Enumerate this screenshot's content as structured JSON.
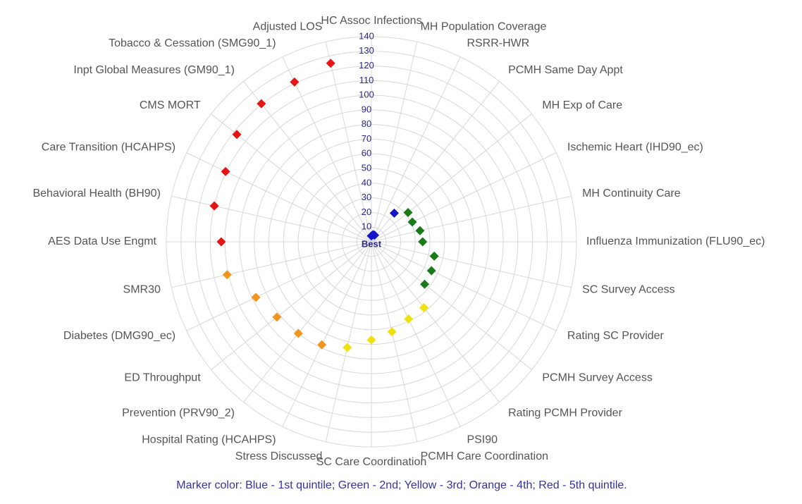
{
  "chart_data": {
    "type": "polar_scatter",
    "categories": [
      "HC Assoc Infections",
      "MH Population Coverage",
      "RSRR-HWR",
      "PCMH Same Day Appt",
      "MH Exp of Care",
      "Ischemic Heart (IHD90_ec)",
      "MH Continuity Care",
      "Influenza Immunization (FLU90_ec)",
      "SC Survey Access",
      "Rating SC Provider",
      "PCMH Survey Access",
      "Rating PCMH Provider",
      "PSI90",
      "PCMH Care Coordination",
      "SC Care Coordination",
      "Stress Discussed",
      "Hospital Rating (HCAHPS)",
      "Prevention (PRV90_2)",
      "ED Throughput",
      "Diabetes (DMG90_ec)",
      "SMR30",
      "AES Data Use Engmt",
      "Behavioral Health (BH90)",
      "Care Transition (HCAHPS)",
      "CMS MORT",
      "Inpt Global Measures (GM90_1)",
      "Tobacco & Cessation (SMG90_1)",
      "Adjusted LOS"
    ],
    "values": [
      4,
      5,
      5,
      25,
      32,
      31,
      34,
      35,
      44,
      45.5,
      46.5,
      57.5,
      58.5,
      63,
      67,
      74,
      78,
      80,
      82.5,
      87.5,
      101,
      102.5,
      110,
      110.5,
      117.5,
      120.5,
      121,
      125
    ],
    "colors": [
      "#1414c8",
      "#1414c8",
      "#1414c8",
      "#1414c8",
      "#1a7a1a",
      "#1a7a1a",
      "#1a7a1a",
      "#1a7a1a",
      "#1a7a1a",
      "#1a7a1a",
      "#1a7a1a",
      "#f0e010",
      "#f0e010",
      "#f0e010",
      "#f0e010",
      "#f0e010",
      "#f0961e",
      "#f0961e",
      "#f0961e",
      "#f0961e",
      "#f0961e",
      "#e61414",
      "#e61414",
      "#e61414",
      "#e61414",
      "#e61414",
      "#e61414",
      "#e61414"
    ],
    "rlim": [
      0,
      140
    ],
    "rticks": [
      10,
      20,
      30,
      40,
      50,
      60,
      70,
      80,
      90,
      100,
      110,
      120,
      130,
      140
    ],
    "center_label": "Best",
    "note": "Marker color: Blue - 1st quintile; Green - 2nd; Yellow - 3rd; Orange - 4th; Red - 5th quintile."
  }
}
